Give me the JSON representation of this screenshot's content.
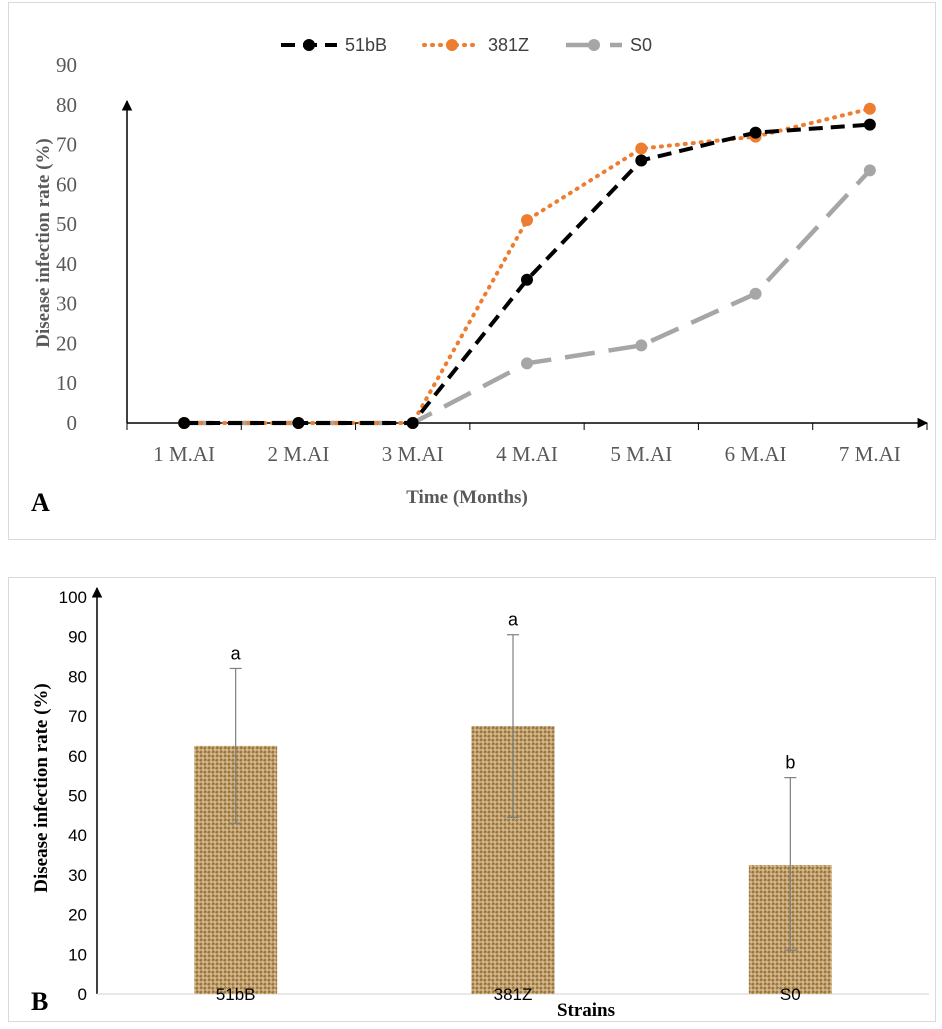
{
  "chart_data": [
    {
      "panel_label": "A",
      "type": "line",
      "categories": [
        "1 M.AI",
        "2 M.AI",
        "3 M.AI",
        "4 M.AI",
        "5 M.AI",
        "6 M.AI",
        "7 M.AI"
      ],
      "xlabel": "Time (Months)",
      "ylabel": "Disease infection rate (%)",
      "ylim": [
        0,
        90
      ],
      "yticks": [
        0,
        10,
        20,
        30,
        40,
        50,
        60,
        70,
        80,
        90
      ],
      "legend_position": "top",
      "grid": false,
      "series": [
        {
          "name": "51bB",
          "values": [
            0,
            0,
            0,
            36,
            66,
            73,
            75
          ],
          "color": "#000000",
          "dash": "dashed"
        },
        {
          "name": "381Z",
          "values": [
            0,
            0,
            0,
            51,
            69,
            72,
            79
          ],
          "color": "#ed7d31",
          "dash": "dotted"
        },
        {
          "name": "S0",
          "values": [
            0,
            0,
            0,
            15,
            19.5,
            32.5,
            63.5
          ],
          "color": "#a6a6a6",
          "dash": "long-dash"
        }
      ]
    },
    {
      "panel_label": "B",
      "type": "bar",
      "categories": [
        "51bB",
        "381Z",
        "S0"
      ],
      "values": [
        62.5,
        67.5,
        32.5
      ],
      "error_high": [
        82,
        90.5,
        54.5
      ],
      "error_low": [
        43,
        44.5,
        11
      ],
      "significance_letters": [
        "a",
        "a",
        "b"
      ],
      "xlabel": "Strains",
      "ylabel": "Disease infection rate (%)",
      "ylim": [
        0,
        100
      ],
      "yticks": [
        0,
        10,
        20,
        30,
        40,
        50,
        60,
        70,
        80,
        90,
        100
      ],
      "bar_fill": "burlap texture",
      "grid": false
    }
  ]
}
